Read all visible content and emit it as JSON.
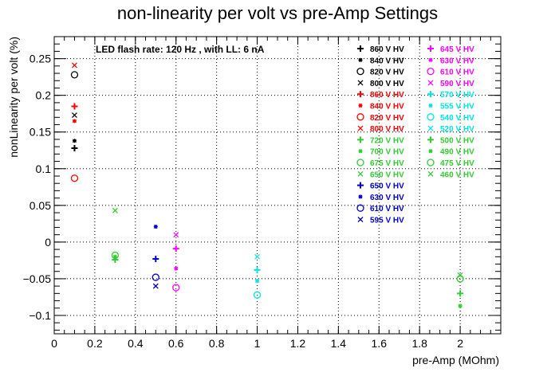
{
  "chart_data": {
    "type": "scatter",
    "title": "non-linearity per volt vs pre-Amp Settings",
    "xlabel": "pre-Amp (MOhm)",
    "ylabel": "nonLinearity per volt (%)",
    "annotation": "LED flash rate: 120 Hz , with LL: 6 nA",
    "xlim": [
      0,
      2.2
    ],
    "ylim": [
      -0.125,
      0.28
    ],
    "x_ticks": [
      "0",
      "0.2",
      "0.4",
      "0.6",
      "0.8",
      "1",
      "1.2",
      "1.4",
      "1.6",
      "1.8",
      "2"
    ],
    "y_ticks": [
      "0.25",
      "0.2",
      "0.15",
      "0.1",
      "0.05",
      "0",
      "−0.05",
      "−0.1"
    ],
    "grid": true,
    "legend_position": "top-right",
    "series": [
      {
        "name": "860 V HV",
        "color": "#000000",
        "marker": "plus",
        "points": [
          {
            "x": 0.1,
            "y": 0.128
          }
        ]
      },
      {
        "name": "840 V HV",
        "color": "#000000",
        "marker": "star",
        "points": [
          {
            "x": 0.1,
            "y": 0.138
          }
        ]
      },
      {
        "name": "820 V HV",
        "color": "#000000",
        "marker": "circle",
        "points": [
          {
            "x": 0.1,
            "y": 0.228
          }
        ]
      },
      {
        "name": "800 V HV",
        "color": "#000000",
        "marker": "cross",
        "points": [
          {
            "x": 0.1,
            "y": 0.173
          }
        ]
      },
      {
        "name": "860 V HV",
        "color": "#ff0000",
        "marker": "plus",
        "points": [
          {
            "x": 0.1,
            "y": 0.185
          }
        ]
      },
      {
        "name": "840 V HV",
        "color": "#ff0000",
        "marker": "star",
        "points": [
          {
            "x": 0.1,
            "y": 0.165
          }
        ]
      },
      {
        "name": "820 V HV",
        "color": "#ff0000",
        "marker": "circle",
        "points": [
          {
            "x": 0.1,
            "y": 0.087
          }
        ]
      },
      {
        "name": "800 V HV",
        "color": "#ff0000",
        "marker": "cross",
        "points": [
          {
            "x": 0.1,
            "y": 0.241
          }
        ]
      },
      {
        "name": "720 V HV",
        "color": "#33cc33",
        "marker": "plus",
        "points": [
          {
            "x": 0.3,
            "y": -0.024
          },
          {
            "x": 2.0,
            "y": -0.07
          }
        ]
      },
      {
        "name": "700 V HV",
        "color": "#33cc33",
        "marker": "star",
        "points": [
          {
            "x": 0.3,
            "y": -0.02
          },
          {
            "x": 2.0,
            "y": -0.087
          }
        ]
      },
      {
        "name": "675 V HV",
        "color": "#33cc33",
        "marker": "circle",
        "points": [
          {
            "x": 0.3,
            "y": -0.018
          },
          {
            "x": 2.0,
            "y": -0.05
          }
        ]
      },
      {
        "name": "650 V HV",
        "color": "#33cc33",
        "marker": "cross",
        "points": [
          {
            "x": 0.3,
            "y": 0.043
          },
          {
            "x": 2.0,
            "y": -0.045
          }
        ]
      },
      {
        "name": "650 V HV",
        "color": "#0000cc",
        "marker": "plus",
        "points": [
          {
            "x": 0.5,
            "y": -0.023
          }
        ]
      },
      {
        "name": "630 V HV",
        "color": "#0000cc",
        "marker": "star",
        "points": [
          {
            "x": 0.5,
            "y": 0.021
          }
        ]
      },
      {
        "name": "610 V HV",
        "color": "#0000cc",
        "marker": "circle",
        "points": [
          {
            "x": 0.5,
            "y": -0.048
          }
        ]
      },
      {
        "name": "595 V HV",
        "color": "#0000cc",
        "marker": "cross",
        "points": [
          {
            "x": 0.5,
            "y": -0.06
          }
        ]
      },
      {
        "name": "645 V HV",
        "color": "#ff00ff",
        "marker": "plus",
        "points": [
          {
            "x": 0.6,
            "y": -0.009
          }
        ]
      },
      {
        "name": "630 V HV",
        "color": "#ff00ff",
        "marker": "star",
        "points": [
          {
            "x": 0.6,
            "y": -0.036
          }
        ]
      },
      {
        "name": "610 V HV",
        "color": "#ff00ff",
        "marker": "circle",
        "points": [
          {
            "x": 0.6,
            "y": -0.062
          }
        ]
      },
      {
        "name": "590 V HV",
        "color": "#ff00ff",
        "marker": "cross",
        "points": [
          {
            "x": 0.6,
            "y": 0.01
          }
        ]
      },
      {
        "name": "570 V HV",
        "color": "#00e5e5",
        "marker": "plus",
        "points": [
          {
            "x": 1.0,
            "y": -0.038
          }
        ]
      },
      {
        "name": "555 V HV",
        "color": "#00e5e5",
        "marker": "star",
        "points": [
          {
            "x": 1.0,
            "y": -0.053
          }
        ]
      },
      {
        "name": "540 V HV",
        "color": "#00e5e5",
        "marker": "circle",
        "points": [
          {
            "x": 1.0,
            "y": -0.072
          }
        ]
      },
      {
        "name": "520 V HV",
        "color": "#00e5e5",
        "marker": "cross",
        "points": [
          {
            "x": 1.0,
            "y": -0.02
          }
        ]
      },
      {
        "name": "500 V HV",
        "color": "#33cc33",
        "marker": "plus",
        "points": []
      },
      {
        "name": "490 V HV",
        "color": "#33cc33",
        "marker": "star",
        "points": []
      },
      {
        "name": "475 V HV",
        "color": "#33cc33",
        "marker": "circle",
        "points": []
      },
      {
        "name": "460 V HV",
        "color": "#33cc33",
        "marker": "cross",
        "points": []
      }
    ]
  }
}
